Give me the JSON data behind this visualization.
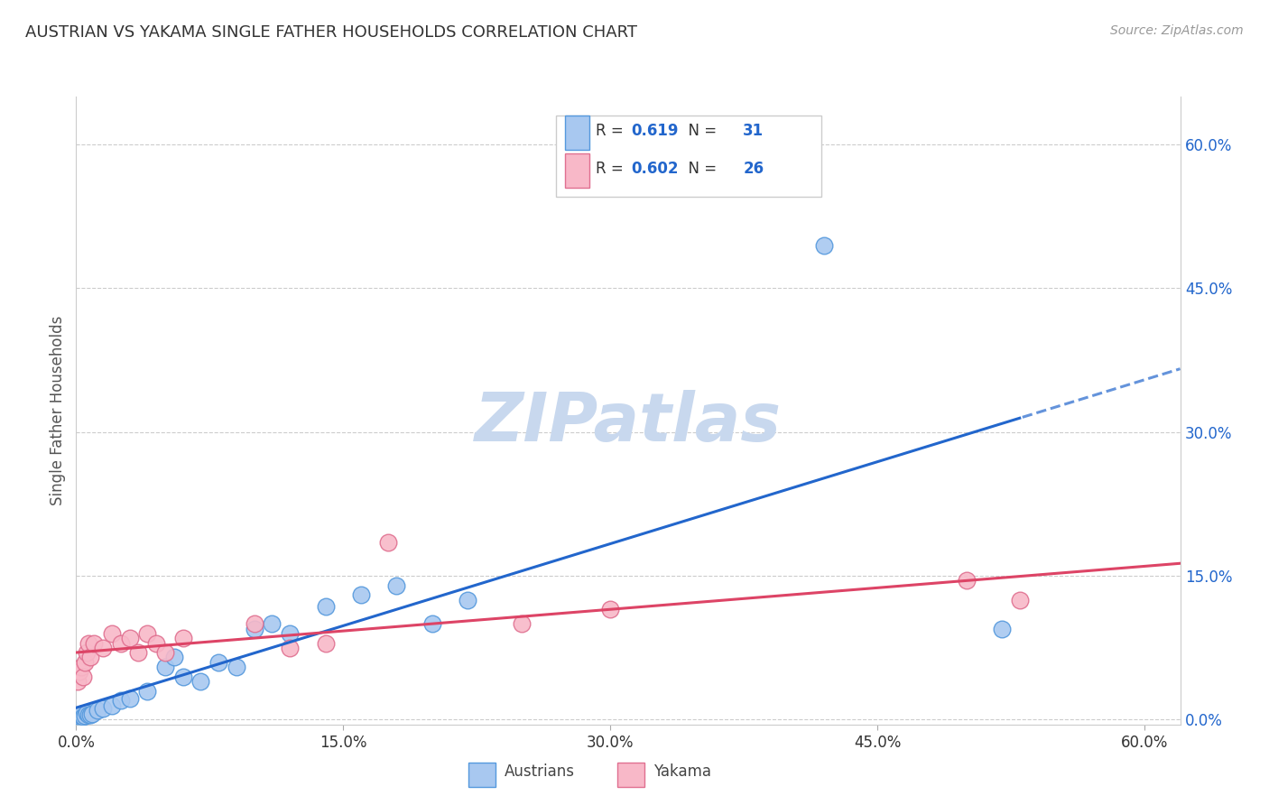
{
  "title": "AUSTRIAN VS YAKAMA SINGLE FATHER HOUSEHOLDS CORRELATION CHART",
  "source": "Source: ZipAtlas.com",
  "ylabel": "Single Father Households",
  "xlim": [
    0.0,
    0.62
  ],
  "ylim": [
    -0.005,
    0.65
  ],
  "austrians_R": "0.619",
  "austrians_N": "31",
  "yakama_R": "0.602",
  "yakama_N": "26",
  "blue_scatter_face": "#a8c8f0",
  "blue_scatter_edge": "#5599dd",
  "pink_scatter_face": "#f8b8c8",
  "pink_scatter_edge": "#e07090",
  "blue_line_color": "#2266cc",
  "pink_line_color": "#dd4466",
  "grid_color": "#cccccc",
  "title_color": "#333333",
  "axis_tick_color": "#2266cc",
  "watermark_color": "#c8d8ee",
  "austrians_x": [
    0.001,
    0.002,
    0.003,
    0.004,
    0.005,
    0.006,
    0.007,
    0.008,
    0.009,
    0.012,
    0.015,
    0.02,
    0.025,
    0.03,
    0.04,
    0.05,
    0.055,
    0.06,
    0.07,
    0.08,
    0.09,
    0.1,
    0.11,
    0.12,
    0.14,
    0.16,
    0.18,
    0.2,
    0.22,
    0.42,
    0.52
  ],
  "austrians_y": [
    0.004,
    0.005,
    0.006,
    0.003,
    0.004,
    0.007,
    0.005,
    0.005,
    0.006,
    0.01,
    0.012,
    0.015,
    0.02,
    0.022,
    0.03,
    0.055,
    0.065,
    0.045,
    0.04,
    0.06,
    0.055,
    0.095,
    0.1,
    0.09,
    0.118,
    0.13,
    0.14,
    0.1,
    0.125,
    0.495,
    0.095
  ],
  "yakama_x": [
    0.001,
    0.002,
    0.003,
    0.004,
    0.005,
    0.006,
    0.007,
    0.008,
    0.01,
    0.015,
    0.02,
    0.025,
    0.03,
    0.035,
    0.04,
    0.045,
    0.05,
    0.06,
    0.1,
    0.12,
    0.14,
    0.175,
    0.25,
    0.3,
    0.5,
    0.53
  ],
  "yakama_y": [
    0.04,
    0.05,
    0.055,
    0.045,
    0.06,
    0.07,
    0.08,
    0.065,
    0.08,
    0.075,
    0.09,
    0.08,
    0.085,
    0.07,
    0.09,
    0.08,
    0.07,
    0.085,
    0.1,
    0.075,
    0.08,
    0.185,
    0.1,
    0.115,
    0.145,
    0.125
  ]
}
